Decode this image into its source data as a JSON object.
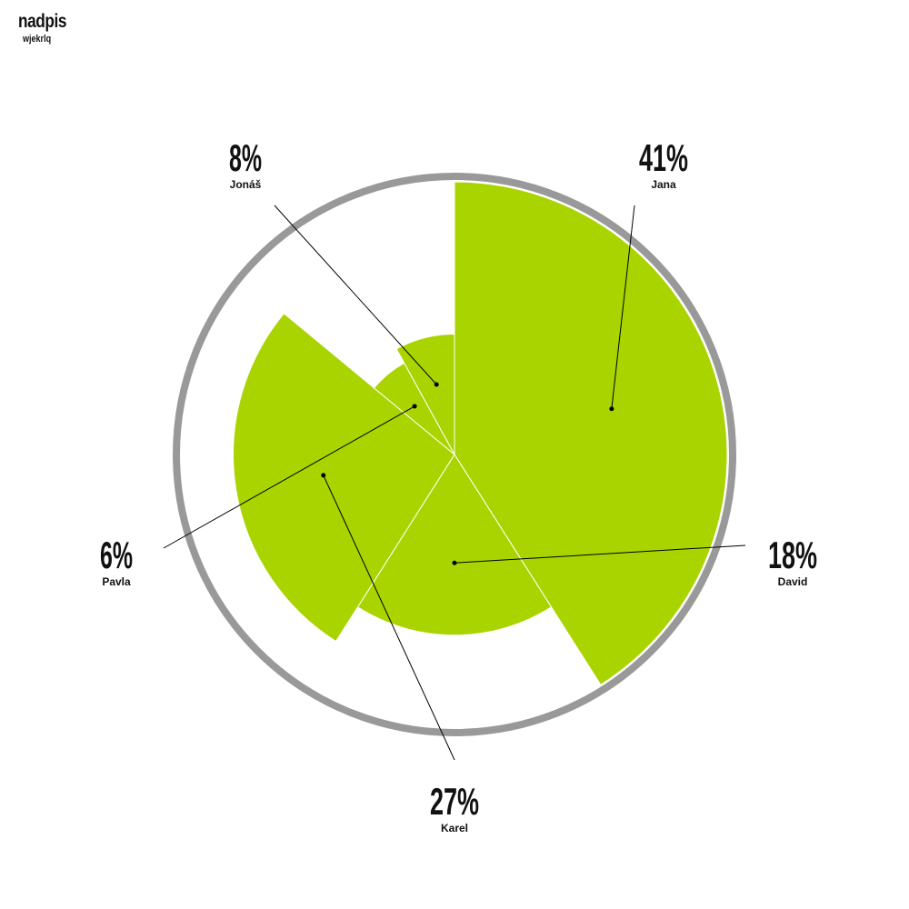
{
  "chart_data": {
    "type": "pie",
    "title": "nadpis",
    "subtitle": "wjekrlq",
    "slices": [
      {
        "label": "Jana",
        "value": 41,
        "value_label": "41%"
      },
      {
        "label": "David",
        "value": 18,
        "value_label": "18%"
      },
      {
        "label": "Karel",
        "value": 27,
        "value_label": "27%"
      },
      {
        "label": "Pavla",
        "value": 6,
        "value_label": "6%"
      },
      {
        "label": "Jonáš",
        "value": 8,
        "value_label": "8%"
      }
    ],
    "slice_color": "#aad400",
    "ring_color": "#999999",
    "leader_color": "#000000"
  }
}
